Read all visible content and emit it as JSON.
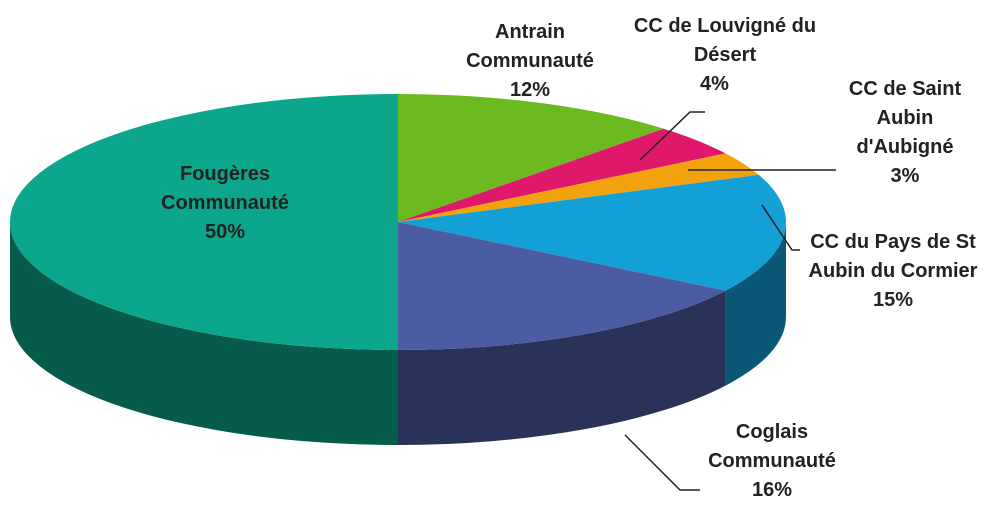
{
  "chart_data": {
    "type": "pie",
    "categories": [
      "Antrain Communauté",
      "CC de Louvigné du Désert",
      "CC de Saint Aubin d'Aubigné",
      "CC du Pays de St Aubin du Cormier",
      "Coglais Communauté",
      "Fougères Communauté"
    ],
    "values": [
      12,
      4,
      3,
      15,
      16,
      50
    ],
    "value_labels": [
      "12%",
      "4%",
      "3%",
      "15%",
      "16%",
      "50%"
    ],
    "colors": [
      "#6cb920",
      "#e0186c",
      "#f2a20c",
      "#12a0d6",
      "#4b5ca2",
      "#0ba68c"
    ]
  }
}
